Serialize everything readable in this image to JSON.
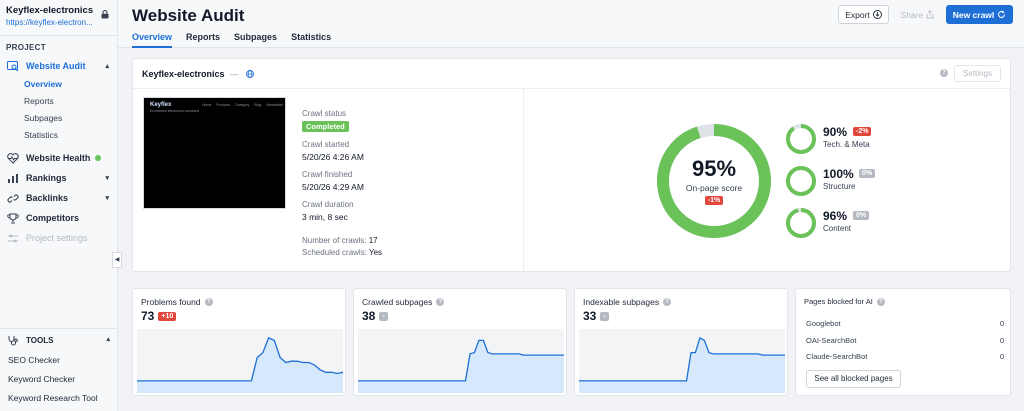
{
  "project": {
    "name": "Keyflex-electronics",
    "url": "https://keyflex-electron..."
  },
  "sidebar": {
    "section_label": "PROJECT",
    "website_audit": "Website Audit",
    "sub_items": [
      "Overview",
      "Reports",
      "Subpages",
      "Statistics"
    ],
    "website_health": "Website Health",
    "rankings": "Rankings",
    "backlinks": "Backlinks",
    "competitors": "Competitors",
    "project_settings": "Project settings",
    "tools_label": "TOOLS",
    "tools": [
      "SEO Checker",
      "Keyword Checker",
      "Keyword Research Tool"
    ]
  },
  "header": {
    "title": "Website Audit",
    "tabs": [
      "Overview",
      "Reports",
      "Subpages",
      "Statistics"
    ],
    "export_label": "Export",
    "share_label": "Share",
    "new_crawl_label": "New crawl"
  },
  "overview": {
    "domain": "Keyflex-electronics",
    "dash": "—",
    "settings_label": "Settings",
    "thumbnail": {
      "brand": "Keyflex",
      "menu": [
        "Home",
        "Products",
        "Category",
        "Blog",
        "Newsletter"
      ],
      "tagline": "Enchanted electronics solutions"
    },
    "crawl_status_label": "Crawl status",
    "crawl_status": "Completed",
    "crawl_started_label": "Crawl started",
    "crawl_started": "5/20/26 4:26 AM",
    "crawl_finished_label": "Crawl finished",
    "crawl_finished": "5/20/26 4:29 AM",
    "crawl_duration_label": "Crawl duration",
    "crawl_duration": "3 min, 8 sec",
    "num_crawls_label": "Number of crawls:",
    "num_crawls": "17",
    "scheduled_label": "Scheduled crawls:",
    "scheduled": "Yes"
  },
  "scores": {
    "main": {
      "value": "95%",
      "fraction": 0.95,
      "label": "On-page score",
      "change": "-1%"
    },
    "items": [
      {
        "value": "90%",
        "fraction": 0.9,
        "label": "Tech. & Meta",
        "change": "-2%",
        "change_type": "red"
      },
      {
        "value": "100%",
        "fraction": 1.0,
        "label": "Structure",
        "change": "0%",
        "change_type": "grey"
      },
      {
        "value": "96%",
        "fraction": 0.96,
        "label": "Content",
        "change": "0%",
        "change_type": "grey"
      }
    ],
    "colors": {
      "good": "#6ac259",
      "track": "#dfe3e8"
    }
  },
  "stats": {
    "problems": {
      "title": "Problems found",
      "value": "73",
      "change": "+10",
      "trend": [
        5,
        5,
        5,
        5,
        5,
        5,
        5,
        5,
        5,
        5,
        5,
        5,
        5,
        5,
        5,
        5,
        5,
        5,
        5,
        5,
        5,
        24,
        28,
        40,
        38,
        24,
        20,
        21,
        21,
        20,
        20,
        18,
        14,
        12,
        12,
        11,
        12
      ]
    },
    "crawled": {
      "title": "Crawled subpages",
      "value": "38",
      "change": "-",
      "trend": [
        5,
        5,
        5,
        5,
        5,
        5,
        5,
        5,
        5,
        5,
        5,
        5,
        5,
        5,
        5,
        5,
        5,
        5,
        5,
        5,
        5,
        5,
        5,
        5,
        5,
        27,
        28,
        38,
        38,
        28,
        27,
        27,
        27,
        27,
        27,
        27,
        27,
        26,
        26,
        26,
        26,
        26,
        26,
        26,
        26,
        26,
        26
      ]
    },
    "indexable": {
      "title": "Indexable subpages",
      "value": "33",
      "change": "-",
      "trend": [
        5,
        5,
        5,
        5,
        5,
        5,
        5,
        5,
        5,
        5,
        5,
        5,
        5,
        5,
        5,
        5,
        5,
        5,
        5,
        5,
        5,
        5,
        5,
        5,
        5,
        28,
        28,
        40,
        38,
        28,
        27,
        27,
        27,
        27,
        27,
        27,
        27,
        27,
        27,
        27,
        27,
        26,
        26,
        26,
        26,
        26,
        26
      ]
    },
    "blocked": {
      "title": "Pages blocked for AI",
      "rows": [
        {
          "name": "Googlebot",
          "value": "0"
        },
        {
          "name": "OAI-SearchBot",
          "value": "0"
        },
        {
          "name": "Claude-SearchBot",
          "value": "0"
        }
      ],
      "button": "See all blocked pages"
    },
    "colors": {
      "line": "#1d6fd6",
      "fill": "#d6e8fb"
    }
  }
}
